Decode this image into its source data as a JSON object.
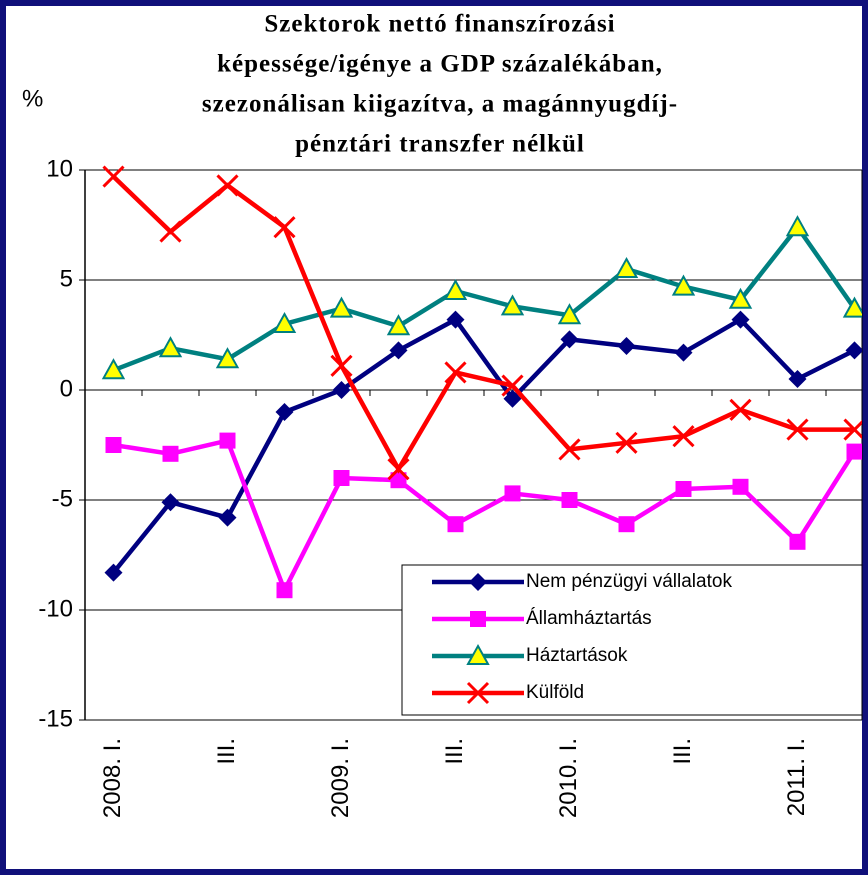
{
  "chart_data": {
    "type": "line",
    "title": [
      "Szektorok nettó finanszírozási",
      "képessége/igénye a GDP százalékában,",
      "szezonálisan kiigazítva, a magánnyugdíj-",
      "pénztári transzfer nélkül"
    ],
    "y_label": "%",
    "categories": [
      "2008. I.",
      null,
      "III.",
      null,
      "2009. I.",
      null,
      "III.",
      null,
      "2010. I.",
      null,
      "III.",
      null,
      "2011. I.",
      null
    ],
    "ylim": [
      -15,
      10
    ],
    "yticks": [
      -15,
      -10,
      -5,
      0,
      5,
      10
    ],
    "grid": true,
    "legend": "bottom-right",
    "series": [
      {
        "name": "Nem pénzügyi vállalatok",
        "color": "#000080",
        "marker": "diamond",
        "values": [
          -8.3,
          -5.1,
          -5.8,
          -1.0,
          0.0,
          1.8,
          3.2,
          -0.4,
          2.3,
          2.0,
          1.7,
          3.2,
          0.5,
          1.8
        ]
      },
      {
        "name": "Államháztartás",
        "color": "#ff00ff",
        "marker": "square",
        "values": [
          -2.5,
          -2.9,
          -2.3,
          -9.1,
          -4.0,
          -4.1,
          -6.1,
          -4.7,
          -5.0,
          -6.1,
          -4.5,
          -4.4,
          -6.9,
          -2.8
        ]
      },
      {
        "name": "Háztartások",
        "color": "#008080",
        "marker": "triangle",
        "values": [
          0.9,
          1.9,
          1.4,
          3.0,
          3.7,
          2.9,
          4.5,
          3.8,
          3.4,
          5.5,
          4.7,
          4.1,
          7.4,
          3.7
        ]
      },
      {
        "name": "Külföld",
        "color": "#ff0000",
        "marker": "x",
        "values": [
          9.7,
          7.2,
          9.3,
          7.4,
          1.1,
          -3.6,
          0.8,
          0.2,
          -2.7,
          -2.4,
          -2.1,
          -0.9,
          -1.8,
          -1.8
        ]
      }
    ]
  }
}
